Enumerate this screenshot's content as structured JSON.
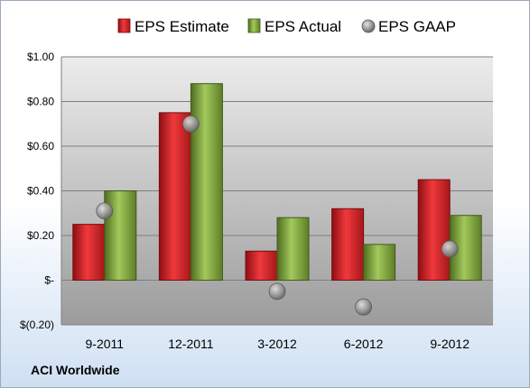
{
  "company": "ACI Worldwide",
  "chart_data": {
    "type": "bar",
    "categories": [
      "9-2011",
      "12-2011",
      "3-2012",
      "6-2012",
      "9-2012"
    ],
    "series": [
      {
        "name": "EPS Estimate",
        "type": "bar",
        "color": "#d01f24",
        "values": [
          0.25,
          0.75,
          0.13,
          0.32,
          0.45
        ]
      },
      {
        "name": "EPS Actual",
        "type": "bar",
        "color": "#7da33a",
        "values": [
          0.4,
          0.88,
          0.28,
          0.16,
          0.29
        ]
      },
      {
        "name": "EPS GAAP",
        "type": "scatter",
        "color": "#9a9a9a",
        "values": [
          0.31,
          0.7,
          -0.05,
          -0.12,
          0.14
        ]
      }
    ],
    "ylim": [
      -0.2,
      1.0
    ],
    "yticks": [
      -0.2,
      0,
      0.2,
      0.4,
      0.6,
      0.8,
      1.0
    ],
    "ytick_labels": [
      "$(0.20)",
      "$-",
      "$0.20",
      "$0.40",
      "$0.60",
      "$0.80",
      "$1.00"
    ],
    "grid": true,
    "legend_position": "top"
  }
}
